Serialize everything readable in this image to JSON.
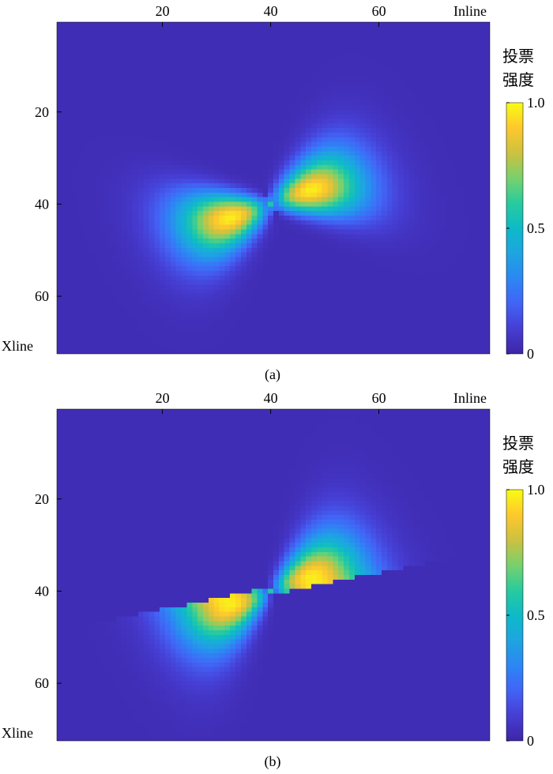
{
  "chart_data": [
    {
      "type": "heatmap",
      "caption": "(a)",
      "xlabel": "Inline",
      "ylabel": "Xline",
      "x_ticks": [
        20,
        40,
        60
      ],
      "y_ticks": [
        20,
        40,
        60
      ],
      "xlim": [
        1,
        80
      ],
      "ylim": [
        1,
        72
      ],
      "x_axis_position": "top",
      "y_axis_reversed": true,
      "colorbar": {
        "title_line1": "投票",
        "title_line2": "强度",
        "ticks": [
          "1.0",
          "0.5",
          "0"
        ],
        "range": [
          0,
          1
        ],
        "colormap": "parula"
      },
      "pattern": {
        "center": [
          40,
          40
        ],
        "lobe_direction_deg": -22,
        "description": "symmetric bowtie-shaped vote-intensity lobes with smooth falloff",
        "sharp_cutoff": false
      }
    },
    {
      "type": "heatmap",
      "caption": "(b)",
      "xlabel": "Inline",
      "ylabel": "Xline",
      "x_ticks": [
        20,
        40,
        60
      ],
      "y_ticks": [
        20,
        40,
        60
      ],
      "xlim": [
        1,
        80
      ],
      "ylim": [
        1,
        72
      ],
      "x_axis_position": "top",
      "y_axis_reversed": true,
      "colorbar": {
        "title_line1": "投票",
        "title_line2": "强度",
        "ticks": [
          "1.0",
          "0.5",
          "0"
        ],
        "range": [
          0,
          1
        ],
        "colormap": "parula"
      },
      "pattern": {
        "center": [
          40,
          40
        ],
        "lobe_direction_deg": -22,
        "description": "bowtie-shaped vote-intensity lobes with sharp angular cutoff",
        "sharp_cutoff": true
      }
    }
  ]
}
